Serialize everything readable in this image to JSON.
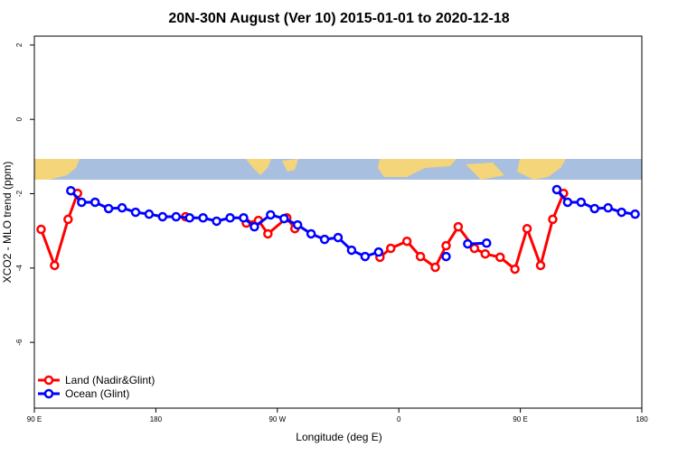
{
  "chart_data": {
    "type": "line",
    "title": "20N-30N August (Ver 10)   2015-01-01 to 2020-12-18",
    "x_label": "Longitude (deg E)",
    "y_label": "XCO2 - MLO trend (ppm)",
    "xlim": [
      90,
      540
    ],
    "ylim": [
      -7.77,
      2.24
    ],
    "xticks": [
      {
        "value": 90,
        "label": "90 E"
      },
      180,
      {
        "value": 270,
        "label": "90 W"
      },
      {
        "value": 360,
        "label": "0"
      },
      {
        "value": 450,
        "label": "90 E"
      },
      {
        "value": 540,
        "label": "180"
      }
    ],
    "yticks": [
      -6,
      -4,
      -2,
      0,
      2
    ],
    "legend": "bottomleft",
    "series": [
      {
        "name": "Land (Nadir&Glint)",
        "color": "#ff0000",
        "x": [
          95,
          105,
          115,
          122,
          160,
          202,
          225,
          247,
          256,
          263,
          277,
          283,
          310,
          346,
          354,
          366,
          376,
          387,
          395,
          404,
          416,
          424,
          435,
          446,
          455,
          465,
          474,
          482
        ],
        "values": [
          -2.96,
          -3.93,
          -2.69,
          -1.99,
          null,
          -2.62,
          null,
          -2.79,
          -2.72,
          -3.08,
          -2.65,
          -2.94,
          null,
          -3.71,
          -3.47,
          -3.28,
          -3.69,
          -3.98,
          -3.4,
          -2.89,
          -3.47,
          -3.62,
          -3.71,
          -4.03,
          -2.94,
          -3.93,
          -2.69,
          -1.99
        ]
      },
      {
        "name": "Ocean (Glint)",
        "color": "#0000ff",
        "x": [
          117,
          125,
          135,
          145,
          155,
          165,
          175,
          185,
          195,
          205,
          215,
          225,
          235,
          245,
          253,
          265,
          275,
          285,
          295,
          305,
          315,
          325,
          335,
          345,
          355,
          395,
          405,
          411,
          425,
          450,
          477,
          485,
          495,
          505,
          515,
          525,
          535
        ],
        "values": [
          -1.92,
          -2.23,
          -2.23,
          -2.4,
          -2.38,
          -2.5,
          -2.55,
          -2.62,
          -2.62,
          -2.65,
          -2.65,
          -2.74,
          -2.65,
          -2.65,
          -2.89,
          -2.57,
          -2.67,
          -2.84,
          -3.08,
          -3.23,
          -3.18,
          -3.52,
          -3.69,
          -3.57,
          null,
          -3.69,
          null,
          -3.35,
          -3.33,
          null,
          -1.89,
          -2.23,
          -2.23,
          -2.4,
          -2.38,
          -2.5,
          -2.55
        ]
      }
    ]
  }
}
